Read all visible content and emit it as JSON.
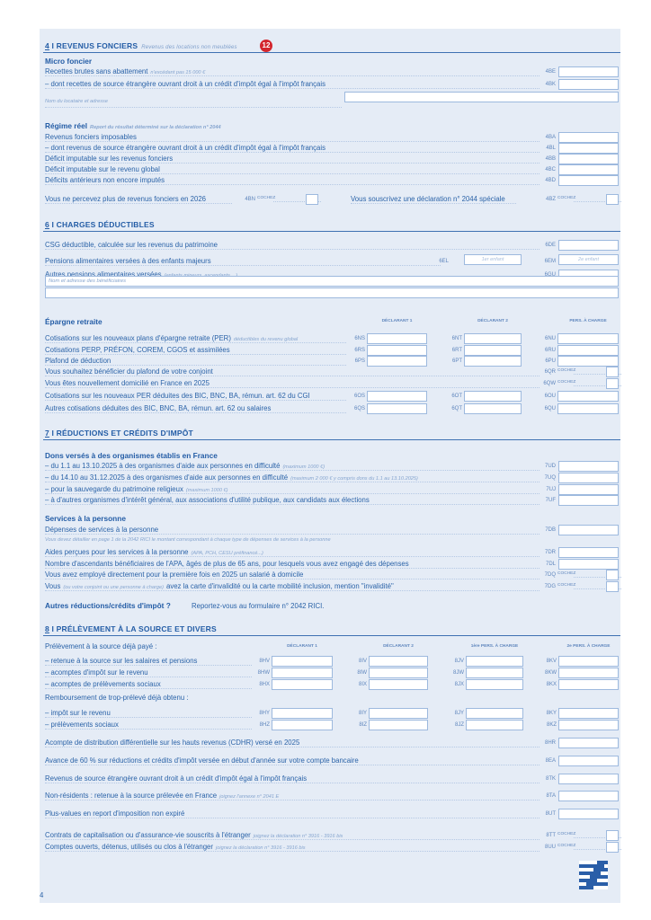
{
  "page_number": "4",
  "colors": {
    "text": "#2b63a8",
    "panel": "#e5ecf6",
    "badge": "#d3262e",
    "line": "#3e70b2"
  },
  "codez_label": "COCHEZ",
  "sections": [
    {
      "num": "4",
      "title": "REVENUS FONCIERS",
      "subtitle": "Revenus des locations non meublées",
      "badge": "12",
      "items": [
        {
          "t": "sub",
          "label": "Micro foncier"
        },
        {
          "t": "row",
          "label": "Recettes brutes sans abattement",
          "note": "n'excédant pas 15 000 €",
          "code": "4BE"
        },
        {
          "t": "row",
          "label": "– dont recettes de source étrangère ouvrant droit à un crédit d'impôt égal à l'impôt français",
          "code": "4BK"
        },
        {
          "t": "namebox",
          "label": "Nom du locataire et adresse"
        },
        {
          "t": "sub",
          "label": "Régime réel",
          "note": "Report du résultat déterminé sur la déclaration n° 2044"
        },
        {
          "t": "row",
          "label": "Revenus fonciers imposables",
          "code": "4BA"
        },
        {
          "t": "row",
          "label": "– dont revenus de source étrangère ouvrant droit à un crédit d'impôt égal à l'impôt français",
          "code": "4BL"
        },
        {
          "t": "row",
          "label": "Déficit imputable sur les revenus fonciers",
          "code": "4BB"
        },
        {
          "t": "row",
          "label": "Déficit imputable sur le revenu global",
          "code": "4BC"
        },
        {
          "t": "row",
          "label": "Déficits antérieurs non encore imputés",
          "code": "4BD"
        },
        {
          "t": "check2",
          "a": {
            "label": "Vous ne percevez plus de revenus fonciers en 2026",
            "code": "4BN"
          },
          "b": {
            "label": "Vous souscrivez une déclaration n° 2044 spéciale",
            "code": "4BZ"
          }
        }
      ]
    },
    {
      "num": "6",
      "title": "CHARGES DÉDUCTIBLES",
      "items": [
        {
          "t": "row",
          "label": "CSG déductible, calculée sur les revenus du patrimoine",
          "code": "6DE"
        },
        {
          "t": "pair",
          "label": "Pensions alimentaires versées à des enfants majeurs",
          "c1": {
            "code": "6EL",
            "placeholder": "1er enfant"
          },
          "c2": {
            "code": "6EM",
            "placeholder": "2e enfant"
          }
        },
        {
          "t": "row",
          "label": "Autres pensions alimentaires versées",
          "note": "(enfants mineurs, ascendants,...)",
          "code": "6GU"
        },
        {
          "t": "fullbox",
          "placeholder": "Nom et adresse des bénéficiaires"
        },
        {
          "t": "fullbox",
          "placeholder": ""
        },
        {
          "t": "cols3",
          "label": "Épargne retraite",
          "cols": [
            "DÉCLARANT 1",
            "DÉCLARANT 2",
            "PERS. À CHARGE"
          ]
        },
        {
          "t": "multi3",
          "label": "Cotisations sur les nouveaux plans d'épargne retraite (PER)",
          "note": "déductibles du revenu global",
          "codes": [
            "6NS",
            "6NT",
            "6NU"
          ]
        },
        {
          "t": "multi3",
          "label": "Cotisations PERP, PRÉFON, COREM, CGOS et assimilées",
          "codes": [
            "6RS",
            "6RT",
            "6RU"
          ]
        },
        {
          "t": "multi3",
          "label": "Plafond de déduction",
          "codes": [
            "6PS",
            "6PT",
            "6PU"
          ]
        },
        {
          "t": "check",
          "label": "Vous souhaitez bénéficier du plafond de votre conjoint",
          "code": "6QR"
        },
        {
          "t": "check",
          "label": "Vous êtes nouvellement domicilié en France en 2025",
          "code": "6QW"
        },
        {
          "t": "multi3",
          "label": "Cotisations sur les nouveaux PER déduites des BIC, BNC, BA, rémun. art. 62 du CGI",
          "codes": [
            "6OS",
            "6OT",
            "6OU"
          ]
        },
        {
          "t": "multi3",
          "label": "Autres cotisations déduites des BIC, BNC, BA, rémun. art. 62 ou salaires",
          "codes": [
            "6QS",
            "6QT",
            "6QU"
          ]
        }
      ]
    },
    {
      "num": "7",
      "title": "RÉDUCTIONS ET CRÉDITS D'IMPÔT",
      "items": [
        {
          "t": "sub",
          "label": "Dons versés à des organismes établis en France"
        },
        {
          "t": "row",
          "label": "– du 1.1 au 13.10.2025 à des organismes d'aide aux personnes en difficulté",
          "note": "(maximum 1000 €)",
          "code": "7UD"
        },
        {
          "t": "row",
          "label": "– du 14.10 au 31.12.2025 à des organismes d'aide aux personnes en difficulté",
          "note": "(maximum 2 000 € y compris dons du 1.1 au 13.10.2025)",
          "code": "7UQ"
        },
        {
          "t": "row",
          "label": "– pour la sauvegarde du patrimoine religieux",
          "note": "(maximum 1000 €)",
          "code": "7UJ"
        },
        {
          "t": "row",
          "label": "– à d'autres organismes d'intérêt général, aux associations d'utilité publique, aux candidats aux élections",
          "code": "7UF"
        },
        {
          "t": "sub",
          "label": "Services à la personne"
        },
        {
          "t": "row",
          "label": "Dépenses de services à la personne",
          "code": "7DB"
        },
        {
          "t": "note",
          "label": "Vous devez détailler en page 1 de la 2042 RICI le montant correspondant à chaque type de dépenses de services à la personne"
        },
        {
          "t": "row",
          "label": "Aides perçues pour les services à la personne",
          "note": "(APA, PCH, CESU préfinancé...)",
          "code": "7DR"
        },
        {
          "t": "row",
          "label": "Nombre d'ascendants bénéficiaires de l'APA, âgés de plus de 65 ans, pour lesquels vous avez engagé des dépenses",
          "code": "7DL"
        },
        {
          "t": "check",
          "label": "Vous avez employé directement pour la première fois en 2025 un salarié à domicile",
          "code": "7DQ"
        },
        {
          "t": "check",
          "label": "Vous",
          "note": "(ou votre conjoint ou une personne à charge)",
          "label2": "avez la carte d'invalidité ou la carte mobilité inclusion, mention \"invalidité\"",
          "code": "7DG"
        },
        {
          "t": "text",
          "bold": "Autres réductions/crédits d'impôt ?",
          "label": "Reportez-vous au formulaire n° 2042 RICI."
        }
      ]
    },
    {
      "num": "8",
      "title": "PRÉLÈVEMENT À LA SOURCE ET DIVERS",
      "items": [
        {
          "t": "cols4",
          "label": "Prélèvement à la source déjà payé :",
          "cols": [
            "DÉCLARANT 1",
            "DÉCLARANT 2",
            "1ère PERS. À CHARGE",
            "2e PERS. À CHARGE"
          ]
        },
        {
          "t": "multi4",
          "label": "– retenue à la source sur les salaires et pensions",
          "codes": [
            "8HV",
            "8IV",
            "8JV",
            "8KV"
          ]
        },
        {
          "t": "multi4",
          "label": "– acomptes d'impôt sur le revenu",
          "codes": [
            "8HW",
            "8IW",
            "8JW",
            "8KW"
          ]
        },
        {
          "t": "multi4",
          "label": "– acomptes de prélèvements sociaux",
          "codes": [
            "8HX",
            "8IX",
            "8JX",
            "8KX"
          ]
        },
        {
          "t": "plain",
          "label": "Remboursement de trop-prélevé déjà obtenu :"
        },
        {
          "t": "multi4",
          "label": "– impôt sur le revenu",
          "codes": [
            "8HY",
            "8IY",
            "8JY",
            "8KY"
          ]
        },
        {
          "t": "multi4",
          "label": "– prélèvements sociaux",
          "codes": [
            "8HZ",
            "8IZ",
            "8JZ",
            "8KZ"
          ]
        },
        {
          "t": "row",
          "label": "Acompte de distribution différentielle sur les hauts revenus (CDHR) versé en 2025",
          "code": "8HR"
        },
        {
          "t": "row",
          "label": "Avance de 60 % sur réductions et crédits d'impôt versée en début d'année sur votre compte bancaire",
          "code": "8EA"
        },
        {
          "t": "row",
          "label": "Revenus de source étrangère ouvrant droit à un crédit d'impôt égal à l'impôt français",
          "code": "8TK"
        },
        {
          "t": "row",
          "label": "Non-résidents : retenue à la source prélevée en France",
          "note": "joignez l'annexe n° 2041 E",
          "code": "8TA"
        },
        {
          "t": "row",
          "label": "Plus-values en report d'imposition non expiré",
          "code": "8UT"
        },
        {
          "t": "check",
          "label": "Contrats de capitalisation ou d'assurance-vie souscrits à l'étranger",
          "note": "joignez la déclaration n° 3916 - 3916 bis",
          "code": "8TT"
        },
        {
          "t": "check",
          "label": "Comptes ouverts, détenus, utilisés ou clos à l'étranger",
          "note": "joignez la déclaration n° 3916 - 3916 bis",
          "code": "8UU"
        }
      ]
    }
  ]
}
